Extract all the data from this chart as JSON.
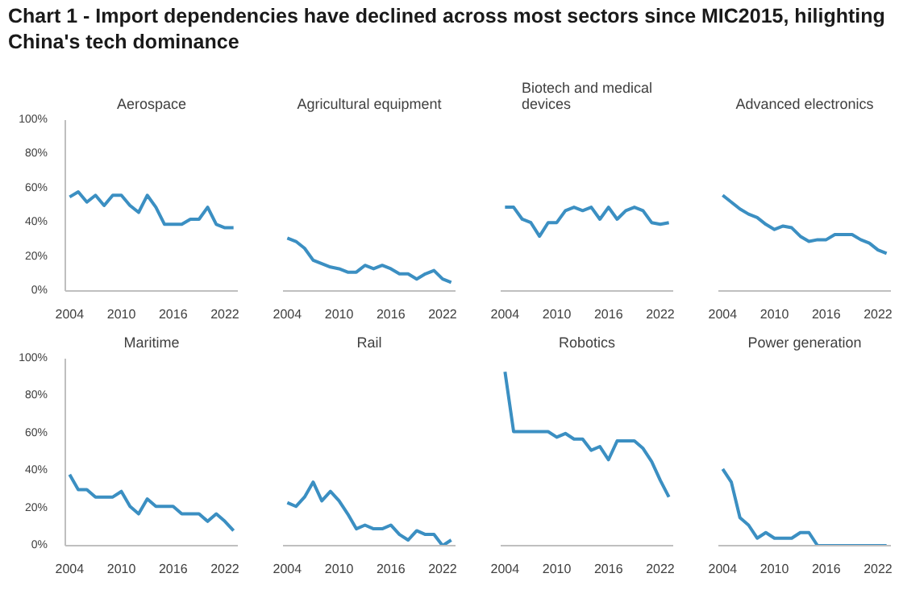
{
  "chart_data": [
    {
      "type": "other",
      "title": "Chart 1 - Import dependencies have declined across most sectors since MIC2015, hilighting China's tech dominance"
    },
    {
      "type": "line",
      "title": "Aerospace",
      "x": [
        2004,
        2005,
        2006,
        2007,
        2008,
        2009,
        2010,
        2011,
        2012,
        2013,
        2014,
        2015,
        2016,
        2017,
        2018,
        2019,
        2020,
        2021,
        2022,
        2023
      ],
      "series": [
        {
          "color": "#3b8fc2",
          "values": [
            55,
            58,
            52,
            56,
            50,
            56,
            56,
            50,
            46,
            56,
            49,
            39,
            39,
            39,
            42,
            42,
            49,
            39,
            37,
            37
          ]
        }
      ],
      "xlim": [
        2003.5,
        2023.5
      ],
      "ylim": [
        0,
        100
      ],
      "xticks": [
        2004,
        2010,
        2016,
        2022
      ],
      "yticks": [
        {
          "value": 0,
          "label": "0%"
        },
        {
          "value": 20,
          "label": "20%"
        },
        {
          "value": 40,
          "label": "40%"
        },
        {
          "value": 60,
          "label": "60%"
        },
        {
          "value": 80,
          "label": "80%"
        },
        {
          "value": 100,
          "label": "100%"
        }
      ],
      "grid": false
    },
    {
      "type": "line",
      "title": "Agricultural equipment",
      "x": [
        2004,
        2005,
        2006,
        2007,
        2008,
        2009,
        2010,
        2011,
        2012,
        2013,
        2014,
        2015,
        2016,
        2017,
        2018,
        2019,
        2020,
        2021,
        2022,
        2023
      ],
      "series": [
        {
          "color": "#3b8fc2",
          "values": [
            31,
            29,
            25,
            18,
            16,
            14,
            13,
            11,
            11,
            15,
            13,
            15,
            13,
            10,
            10,
            7,
            10,
            12,
            7,
            5
          ]
        }
      ],
      "xlim": [
        2003.5,
        2023.5
      ],
      "ylim": [
        0,
        100
      ],
      "xticks": [
        2004,
        2010,
        2016,
        2022
      ],
      "tick_labels": "x",
      "grid": false
    },
    {
      "type": "line",
      "title": "Biotech and medical devices",
      "x": [
        2004,
        2005,
        2006,
        2007,
        2008,
        2009,
        2010,
        2011,
        2012,
        2013,
        2014,
        2015,
        2016,
        2017,
        2018,
        2019,
        2020,
        2021,
        2022,
        2023
      ],
      "series": [
        {
          "color": "#3b8fc2",
          "values": [
            49,
            49,
            42,
            40,
            32,
            40,
            40,
            47,
            49,
            47,
            49,
            42,
            49,
            42,
            47,
            49,
            47,
            40,
            39,
            40
          ]
        }
      ],
      "xlim": [
        2003.5,
        2023.5
      ],
      "ylim": [
        0,
        100
      ],
      "xticks": [
        2004,
        2010,
        2016,
        2022
      ],
      "tick_labels": "x",
      "grid": false
    },
    {
      "type": "line",
      "title": "Advanced electronics",
      "x": [
        2004,
        2005,
        2006,
        2007,
        2008,
        2009,
        2010,
        2011,
        2012,
        2013,
        2014,
        2015,
        2016,
        2017,
        2018,
        2019,
        2020,
        2021,
        2022,
        2023
      ],
      "series": [
        {
          "color": "#3b8fc2",
          "values": [
            56,
            52,
            48,
            45,
            43,
            39,
            36,
            38,
            37,
            32,
            29,
            30,
            30,
            33,
            33,
            33,
            30,
            28,
            24,
            22
          ]
        }
      ],
      "xlim": [
        2003.5,
        2023.5
      ],
      "ylim": [
        0,
        100
      ],
      "xticks": [
        2004,
        2010,
        2016,
        2022
      ],
      "tick_labels": "x",
      "grid": false
    },
    {
      "type": "line",
      "title": "Maritime",
      "x": [
        2004,
        2005,
        2006,
        2007,
        2008,
        2009,
        2010,
        2011,
        2012,
        2013,
        2014,
        2015,
        2016,
        2017,
        2018,
        2019,
        2020,
        2021,
        2022,
        2023
      ],
      "series": [
        {
          "color": "#3b8fc2",
          "values": [
            38,
            30,
            30,
            26,
            26,
            26,
            29,
            21,
            17,
            25,
            21,
            21,
            21,
            17,
            17,
            17,
            13,
            17,
            13,
            8
          ]
        }
      ],
      "xlim": [
        2003.5,
        2023.5
      ],
      "ylim": [
        0,
        100
      ],
      "xticks": [
        2004,
        2010,
        2016,
        2022
      ],
      "yticks": [
        {
          "value": 0,
          "label": "0%"
        },
        {
          "value": 20,
          "label": "20%"
        },
        {
          "value": 40,
          "label": "40%"
        },
        {
          "value": 60,
          "label": "60%"
        },
        {
          "value": 80,
          "label": "80%"
        },
        {
          "value": 100,
          "label": "100%"
        }
      ],
      "grid": false
    },
    {
      "type": "line",
      "title": "Rail",
      "x": [
        2004,
        2005,
        2006,
        2007,
        2008,
        2009,
        2010,
        2011,
        2012,
        2013,
        2014,
        2015,
        2016,
        2017,
        2018,
        2019,
        2020,
        2021,
        2022,
        2023
      ],
      "series": [
        {
          "color": "#3b8fc2",
          "values": [
            23,
            21,
            26,
            34,
            24,
            29,
            24,
            17,
            9,
            11,
            9,
            9,
            11,
            6,
            3,
            8,
            6,
            6,
            0,
            3
          ]
        }
      ],
      "xlim": [
        2003.5,
        2023.5
      ],
      "ylim": [
        0,
        100
      ],
      "xticks": [
        2004,
        2010,
        2016,
        2022
      ],
      "tick_labels": "x",
      "grid": false
    },
    {
      "type": "line",
      "title": "Robotics",
      "x": [
        2004,
        2005,
        2006,
        2007,
        2008,
        2009,
        2010,
        2011,
        2012,
        2013,
        2014,
        2015,
        2016,
        2017,
        2018,
        2019,
        2020,
        2021,
        2022,
        2023
      ],
      "series": [
        {
          "color": "#3b8fc2",
          "values": [
            93,
            61,
            61,
            61,
            61,
            61,
            58,
            60,
            57,
            57,
            51,
            53,
            46,
            56,
            56,
            56,
            52,
            45,
            35,
            26
          ]
        }
      ],
      "xlim": [
        2003.5,
        2023.5
      ],
      "ylim": [
        0,
        100
      ],
      "xticks": [
        2004,
        2010,
        2016,
        2022
      ],
      "tick_labels": "x",
      "grid": false
    },
    {
      "type": "line",
      "title": "Power generation",
      "x": [
        2004,
        2005,
        2006,
        2007,
        2008,
        2009,
        2010,
        2011,
        2012,
        2013,
        2014,
        2015,
        2016,
        2017,
        2018,
        2019,
        2020,
        2021,
        2022,
        2023
      ],
      "series": [
        {
          "color": "#3b8fc2",
          "values": [
            41,
            34,
            15,
            11,
            4,
            7,
            4,
            4,
            4,
            7,
            7,
            0,
            0,
            0,
            0,
            0,
            0,
            0,
            0,
            0
          ]
        }
      ],
      "xlim": [
        2003.5,
        2023.5
      ],
      "ylim": [
        0,
        100
      ],
      "xticks": [
        2004,
        2010,
        2016,
        2022
      ],
      "tick_labels": "x",
      "grid": false
    }
  ]
}
